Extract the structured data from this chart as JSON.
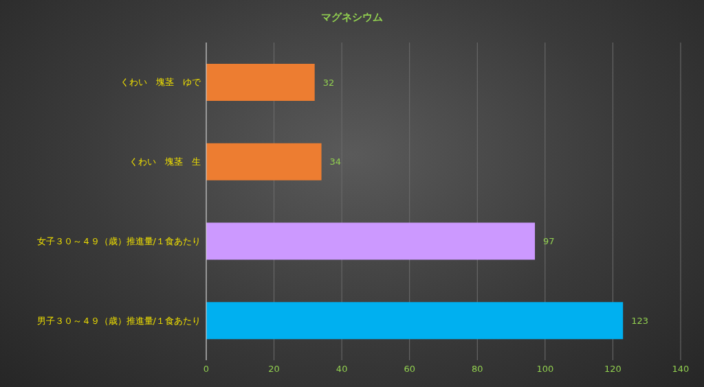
{
  "chart_data": {
    "type": "bar",
    "orientation": "horizontal",
    "title": "マグネシウム",
    "categories": [
      "くわい　塊茎　ゆで",
      "くわい　塊茎　生",
      "女子３０～４９（歳）推進量/１食あたり",
      "男子３０～４９（歳）推進量/１食あたり"
    ],
    "values": [
      32,
      34,
      97,
      123
    ],
    "colors": [
      "#ed7d31",
      "#ed7d31",
      "#cc99ff",
      "#00b0f0"
    ],
    "xlim": [
      0,
      140
    ],
    "xticks": [
      0,
      20,
      40,
      60,
      80,
      100,
      120,
      140
    ],
    "grid": "x",
    "data_labels": true
  }
}
